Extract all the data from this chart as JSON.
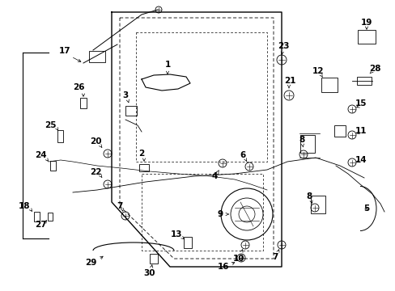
{
  "background_color": "#ffffff",
  "fig_width": 4.89,
  "fig_height": 3.6,
  "dpi": 100,
  "image_base64": ""
}
